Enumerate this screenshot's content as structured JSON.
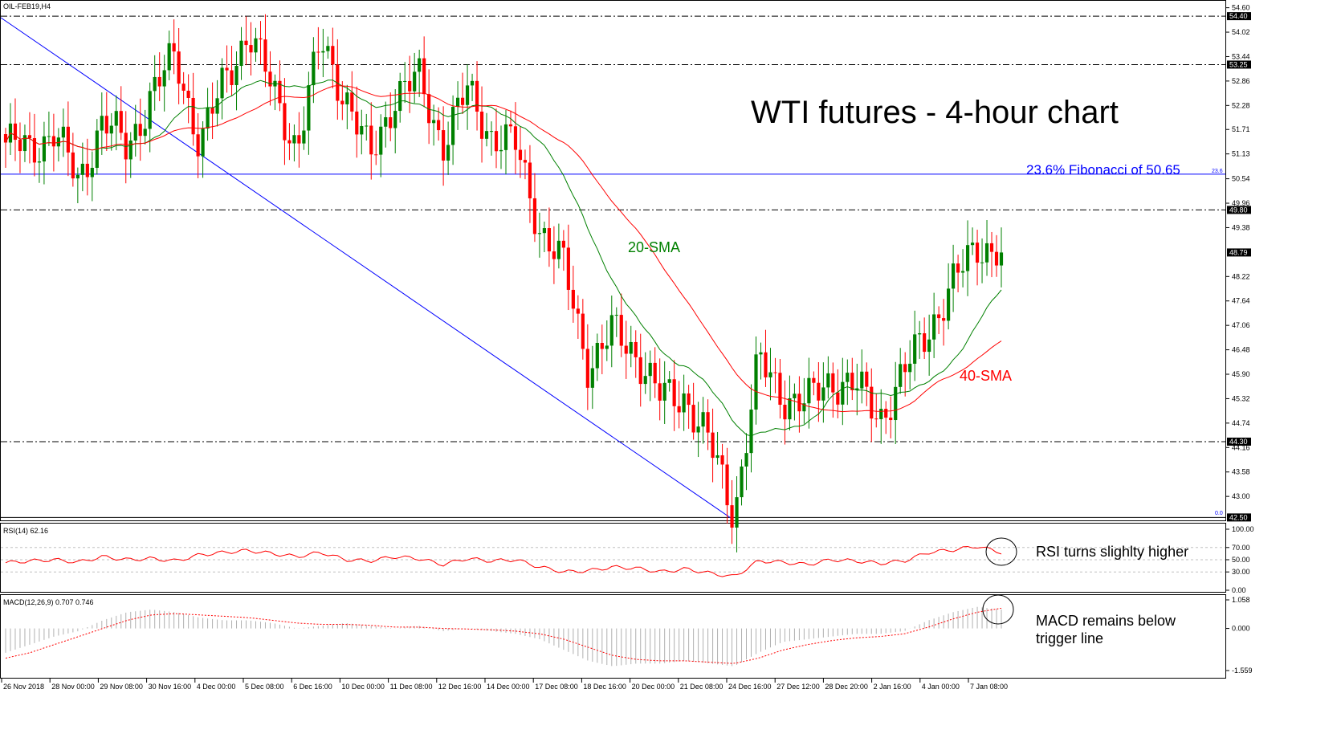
{
  "chart_data": {
    "type": "candlestick",
    "symbol_label": "OIL-FEB19,H4",
    "title": "WTI futures - 4-hour chart",
    "price_axis": {
      "ticks": [
        "54.60",
        "54.02",
        "53.44",
        "52.86",
        "52.28",
        "51.71",
        "51.13",
        "50.54",
        "49.96",
        "49.38",
        "48.22",
        "47.64",
        "47.06",
        "46.48",
        "45.90",
        "45.32",
        "44.74",
        "44.16",
        "43.58",
        "43.00"
      ],
      "ylim": [
        42.45,
        54.65
      ]
    },
    "levels": [
      {
        "value": 54.4,
        "label": "54.40",
        "style": "dashdot"
      },
      {
        "value": 53.25,
        "label": "53.25",
        "style": "dashdot"
      },
      {
        "value": 49.8,
        "label": "49.80",
        "style": "dashdot"
      },
      {
        "value": 44.3,
        "label": "44.30",
        "style": "dashdot"
      },
      {
        "value": 42.5,
        "label": "42.50",
        "style": "solid"
      }
    ],
    "current_price": {
      "value": 48.79,
      "label": "48.79"
    },
    "fibonacci": {
      "value": 50.65,
      "label": "23.6% Fibonacci of 50.65",
      "tag": "23.6",
      "zero_label": "0.0"
    },
    "sma20_label": "20-SMA",
    "sma40_label": "40-SMA",
    "x_labels": [
      "26 Nov 2018",
      "28 Nov 00:00",
      "29 Nov 08:00",
      "30 Nov 16:00",
      "4 Dec 00:00",
      "5 Dec 08:00",
      "6 Dec 16:00",
      "10 Dec 00:00",
      "11 Dec 08:00",
      "12 Dec 16:00",
      "14 Dec 00:00",
      "17 Dec 08:00",
      "18 Dec 16:00",
      "20 Dec 00:00",
      "21 Dec 08:00",
      "24 Dec 16:00",
      "27 Dec 12:00",
      "28 Dec 20:00",
      "2 Jan 16:00",
      "4 Jan 00:00",
      "7 Jan 08:00"
    ],
    "candles_anchor_closes": [
      51.4,
      51.2,
      51.7,
      50.4,
      52.0,
      51.2,
      52.6,
      53.4,
      51.4,
      52.8,
      54.1,
      52.6,
      51.3,
      53.8,
      52.5,
      51.0,
      52.5,
      52.9,
      51.4,
      52.6,
      51.6,
      51.3,
      49.4,
      48.4,
      46.1,
      46.9,
      46.4,
      45.3,
      45.4,
      44.2,
      42.6,
      46.2,
      45.4,
      45.2,
      45.8,
      45.6,
      44.9,
      45.9,
      47.0,
      48.0,
      49.0,
      48.79
    ],
    "rsi": {
      "label": "RSI(14) 62.16",
      "ticks": [
        "100.00",
        "70.00",
        "50.00",
        "30.00",
        "0.00"
      ],
      "values": [
        45,
        48,
        50,
        46,
        55,
        50,
        52,
        48,
        58,
        62,
        65,
        60,
        55,
        62,
        50,
        48,
        55,
        52,
        42,
        52,
        48,
        50,
        38,
        30,
        32,
        38,
        36,
        30,
        35,
        28,
        22,
        48,
        46,
        42,
        50,
        48,
        44,
        48,
        62,
        66,
        72,
        62
      ],
      "annotation": "RSI turns slighlty higher"
    },
    "macd": {
      "label": "MACD(12,26,9) 0.707 0.746",
      "ticks": [
        "1.058",
        "0.000",
        "-1.559"
      ],
      "histogram": [
        -0.9,
        -0.6,
        -0.3,
        -0.1,
        0.3,
        0.6,
        0.7,
        0.6,
        0.4,
        0.3,
        0.3,
        0.2,
        0.0,
        0.1,
        0.2,
        0.1,
        0.0,
        0.1,
        -0.1,
        0.0,
        -0.1,
        -0.2,
        -0.4,
        -0.8,
        -1.2,
        -1.4,
        -1.3,
        -1.3,
        -1.2,
        -1.3,
        -1.4,
        -0.9,
        -0.5,
        -0.4,
        -0.3,
        -0.2,
        -0.2,
        -0.1,
        0.3,
        0.6,
        0.8,
        0.7
      ],
      "signal": [
        -1.1,
        -0.9,
        -0.6,
        -0.3,
        0.0,
        0.3,
        0.5,
        0.55,
        0.5,
        0.45,
        0.4,
        0.3,
        0.2,
        0.15,
        0.15,
        0.12,
        0.05,
        0.05,
        0.0,
        -0.02,
        -0.05,
        -0.1,
        -0.2,
        -0.4,
        -0.7,
        -1.0,
        -1.15,
        -1.2,
        -1.2,
        -1.25,
        -1.3,
        -1.1,
        -0.8,
        -0.6,
        -0.45,
        -0.35,
        -0.3,
        -0.2,
        0.05,
        0.35,
        0.6,
        0.75
      ],
      "annotation_line1": "MACD remains below",
      "annotation_line2": "trigger line"
    }
  },
  "colors": {
    "bull": "#008000",
    "bear": "#ff0000",
    "sma20": "#008000",
    "sma40": "#ff0000",
    "fib": "#0000ff",
    "trendline": "#0000ff",
    "rsi_line": "#ff0000",
    "macd_hist": "#b0b0b0",
    "macd_signal": "#ff0000",
    "tag_bg": "#000000"
  }
}
